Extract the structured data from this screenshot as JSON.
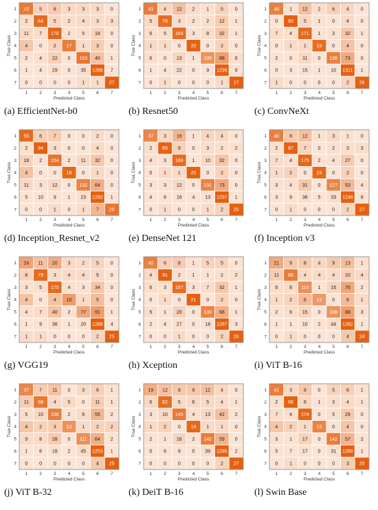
{
  "figure": {
    "colors": {
      "low": "#fbe4d5",
      "high": "#e5600f",
      "grid": "#ffffff",
      "frame": "#555555",
      "text_dark": "#222222",
      "text_light": "#ffffff"
    }
  },
  "chart_data": [
    {
      "type": "heatmap",
      "caption": "(a) EfficientNet-b0",
      "xlabel": "Predicted Class",
      "ylabel": "True Class",
      "x_categories": [
        "1",
        "2",
        "3",
        "4",
        "5",
        "6",
        "7"
      ],
      "y_categories": [
        "1",
        "2",
        "3",
        "4",
        "5",
        "6",
        "7"
      ],
      "matrix": [
        [
          43,
          5,
          8,
          3,
          3,
          3,
          0
        ],
        [
          2,
          64,
          5,
          2,
          4,
          3,
          3
        ],
        [
          11,
          7,
          176,
          2,
          5,
          18,
          0
        ],
        [
          4,
          0,
          2,
          17,
          1,
          3,
          0
        ],
        [
          2,
          4,
          22,
          0,
          153,
          40,
          1
        ],
        [
          1,
          4,
          29,
          0,
          35,
          1268,
          7
        ],
        [
          0,
          0,
          0,
          0,
          1,
          1,
          27
        ]
      ]
    },
    {
      "type": "heatmap",
      "caption": "(b) Resnet50",
      "xlabel": "Predicted Class",
      "ylabel": "True Class",
      "x_categories": [
        "1",
        "2",
        "3",
        "4",
        "5",
        "6",
        "7"
      ],
      "y_categories": [
        "1",
        "2",
        "3",
        "4",
        "5",
        "6",
        "7"
      ],
      "matrix": [
        [
          41,
          4,
          12,
          2,
          1,
          5,
          0
        ],
        [
          5,
          78,
          3,
          2,
          2,
          12,
          1
        ],
        [
          6,
          5,
          164,
          3,
          8,
          32,
          1
        ],
        [
          1,
          1,
          0,
          20,
          0,
          2,
          0
        ],
        [
          6,
          0,
          13,
          1,
          106,
          88,
          6
        ],
        [
          1,
          4,
          22,
          0,
          9,
          1296,
          9
        ],
        [
          0,
          1,
          0,
          0,
          0,
          1,
          27
        ]
      ]
    },
    {
      "type": "heatmap",
      "caption": "(c) ConvNeXt",
      "xlabel": "Predicted Class",
      "ylabel": "True Class",
      "x_categories": [
        "1",
        "2",
        "3",
        "4",
        "5",
        "6",
        "7"
      ],
      "y_categories": [
        "1",
        "2",
        "3",
        "4",
        "5",
        "6",
        "7"
      ],
      "matrix": [
        [
          40,
          1,
          12,
          2,
          6,
          4,
          0
        ],
        [
          0,
          92,
          5,
          1,
          0,
          4,
          0
        ],
        [
          7,
          4,
          171,
          1,
          3,
          32,
          1
        ],
        [
          0,
          1,
          1,
          18,
          0,
          4,
          0
        ],
        [
          2,
          0,
          11,
          0,
          136,
          73,
          0
        ],
        [
          0,
          3,
          15,
          1,
          10,
          1311,
          1
        ],
        [
          1,
          0,
          0,
          0,
          0,
          2,
          26
        ]
      ]
    },
    {
      "type": "heatmap",
      "caption": "(d) Inception_Resnet_v2",
      "xlabel": "Predicted Class",
      "ylabel": "True Class",
      "x_categories": [
        "1",
        "2",
        "3",
        "4",
        "5",
        "6",
        "7"
      ],
      "y_categories": [
        "1",
        "2",
        "3",
        "4",
        "5",
        "6",
        "7"
      ],
      "matrix": [
        [
          50,
          6,
          7,
          0,
          0,
          2,
          0
        ],
        [
          2,
          94,
          3,
          0,
          0,
          4,
          0
        ],
        [
          18,
          2,
          154,
          2,
          11,
          32,
          0
        ],
        [
          4,
          0,
          0,
          19,
          0,
          1,
          0
        ],
        [
          11,
          3,
          12,
          0,
          132,
          64,
          0
        ],
        [
          5,
          10,
          9,
          1,
          23,
          1292,
          1
        ],
        [
          0,
          0,
          1,
          0,
          1,
          7,
          20
        ]
      ]
    },
    {
      "type": "heatmap",
      "caption": "(e) DenseNet 121",
      "xlabel": "Predicted Class",
      "ylabel": "True Class",
      "x_categories": [
        "1",
        "2",
        "3",
        "4",
        "5",
        "6",
        "7"
      ],
      "y_categories": [
        "1",
        "2",
        "3",
        "4",
        "5",
        "6",
        "7"
      ],
      "matrix": [
        [
          37,
          3,
          16,
          1,
          4,
          4,
          0
        ],
        [
          2,
          85,
          9,
          0,
          3,
          2,
          2
        ],
        [
          4,
          3,
          169,
          1,
          10,
          32,
          0
        ],
        [
          0,
          1,
          1,
          20,
          0,
          2,
          0
        ],
        [
          3,
          3,
          12,
          0,
          131,
          73,
          0
        ],
        [
          4,
          6,
          16,
          4,
          13,
          1297,
          1
        ],
        [
          0,
          1,
          0,
          0,
          1,
          2,
          25
        ]
      ]
    },
    {
      "type": "heatmap",
      "caption": "(f) Inception v3",
      "xlabel": "Predicted Class",
      "ylabel": "True Class",
      "x_categories": [
        "1",
        "2",
        "3",
        "4",
        "5",
        "6",
        "7"
      ],
      "y_categories": [
        "1",
        "2",
        "3",
        "4",
        "5",
        "6",
        "7"
      ],
      "matrix": [
        [
          40,
          8,
          12,
          1,
          3,
          1,
          0
        ],
        [
          2,
          87,
          7,
          0,
          2,
          3,
          3
        ],
        [
          7,
          4,
          175,
          2,
          4,
          27,
          0
        ],
        [
          1,
          2,
          0,
          19,
          0,
          2,
          0
        ],
        [
          3,
          4,
          31,
          0,
          127,
          53,
          4
        ],
        [
          3,
          9,
          36,
          5,
          33,
          1246,
          9
        ],
        [
          0,
          1,
          0,
          0,
          0,
          2,
          27
        ]
      ]
    },
    {
      "type": "heatmap",
      "caption": "(g) VGG19",
      "xlabel": "Predicted Class",
      "ylabel": "True Class",
      "x_categories": [
        "1",
        "2",
        "3",
        "4",
        "5",
        "6",
        "7"
      ],
      "y_categories": [
        "1",
        "2",
        "3",
        "4",
        "5",
        "6",
        "7"
      ],
      "matrix": [
        [
          24,
          11,
          20,
          3,
          2,
          5,
          0
        ],
        [
          8,
          79,
          3,
          4,
          4,
          5,
          0
        ],
        [
          3,
          5,
          170,
          4,
          3,
          34,
          0
        ],
        [
          4,
          0,
          4,
          10,
          1,
          5,
          0
        ],
        [
          4,
          7,
          40,
          2,
          77,
          91,
          1
        ],
        [
          1,
          9,
          38,
          1,
          20,
          1268,
          4
        ],
        [
          1,
          1,
          0,
          0,
          0,
          2,
          25
        ]
      ]
    },
    {
      "type": "heatmap",
      "caption": "(h) Xception",
      "xlabel": "Predicted Class",
      "ylabel": "True Class",
      "x_categories": [
        "1",
        "2",
        "3",
        "4",
        "5",
        "6",
        "7"
      ],
      "y_categories": [
        "1",
        "2",
        "3",
        "4",
        "5",
        "6",
        "7"
      ],
      "matrix": [
        [
          40,
          6,
          8,
          1,
          5,
          5,
          0
        ],
        [
          4,
          91,
          2,
          1,
          1,
          2,
          2
        ],
        [
          6,
          3,
          167,
          3,
          7,
          32,
          1
        ],
        [
          0,
          1,
          0,
          21,
          0,
          2,
          0
        ],
        [
          5,
          1,
          20,
          0,
          130,
          66,
          1
        ],
        [
          2,
          4,
          27,
          0,
          18,
          1287,
          3
        ],
        [
          0,
          0,
          1,
          0,
          0,
          2,
          26
        ]
      ]
    },
    {
      "type": "heatmap",
      "caption": "(i) ViT B-16",
      "xlabel": "Predicted Class",
      "ylabel": "True Class",
      "x_categories": [
        "1",
        "2",
        "3",
        "4",
        "5",
        "6",
        "7"
      ],
      "y_categories": [
        "1",
        "2",
        "3",
        "4",
        "5",
        "6",
        "7"
      ],
      "matrix": [
        [
          21,
          9,
          8,
          4,
          9,
          13,
          1
        ],
        [
          11,
          66,
          4,
          4,
          4,
          10,
          4
        ],
        [
          6,
          8,
          110,
          1,
          16,
          76,
          2
        ],
        [
          1,
          2,
          6,
          12,
          0,
          6,
          1
        ],
        [
          2,
          6,
          15,
          0,
          108,
          88,
          3
        ],
        [
          1,
          1,
          10,
          2,
          44,
          1282,
          1
        ],
        [
          0,
          1,
          0,
          0,
          0,
          4,
          24
        ]
      ]
    },
    {
      "type": "heatmap",
      "caption": "(j) ViT B-32",
      "xlabel": "Predicted Class",
      "ylabel": "True Class",
      "x_categories": [
        "1",
        "2",
        "3",
        "4",
        "5",
        "6",
        "7"
      ],
      "y_categories": [
        "1",
        "2",
        "3",
        "4",
        "5",
        "6",
        "7"
      ],
      "matrix": [
        [
          37,
          7,
          11,
          0,
          3,
          6,
          1
        ],
        [
          11,
          68,
          4,
          5,
          0,
          11,
          1
        ],
        [
          5,
          10,
          136,
          2,
          9,
          55,
          2
        ],
        [
          4,
          2,
          3,
          13,
          1,
          2,
          2
        ],
        [
          9,
          8,
          28,
          0,
          111,
          64,
          2
        ],
        [
          1,
          6,
          18,
          2,
          45,
          1253,
          1
        ],
        [
          0,
          0,
          0,
          0,
          0,
          4,
          25
        ]
      ]
    },
    {
      "type": "heatmap",
      "caption": "(k) DeiT B-16",
      "xlabel": "Predicted Class",
      "ylabel": "True Class",
      "x_categories": [
        "1",
        "2",
        "3",
        "4",
        "5",
        "6",
        "7"
      ],
      "y_categories": [
        "1",
        "2",
        "3",
        "4",
        "5",
        "6",
        "7"
      ],
      "matrix": [
        [
          19,
          12,
          9,
          9,
          12,
          4,
          0
        ],
        [
          6,
          82,
          5,
          6,
          5,
          4,
          1
        ],
        [
          3,
          10,
          145,
          4,
          13,
          42,
          2
        ],
        [
          1,
          2,
          0,
          19,
          1,
          1,
          0
        ],
        [
          2,
          1,
          16,
          2,
          142,
          59,
          0
        ],
        [
          0,
          6,
          9,
          0,
          39,
          1285,
          2
        ],
        [
          0,
          0,
          0,
          0,
          0,
          2,
          27
        ]
      ]
    },
    {
      "type": "heatmap",
      "caption": "(l) Swin Base",
      "xlabel": "Predicted Class",
      "ylabel": "True Class",
      "x_categories": [
        "1",
        "2",
        "3",
        "4",
        "5",
        "6",
        "7"
      ],
      "y_categories": [
        "1",
        "2",
        "3",
        "4",
        "5",
        "6",
        "7"
      ],
      "matrix": [
        [
          41,
          3,
          9,
          0,
          5,
          6,
          1
        ],
        [
          2,
          86,
          6,
          1,
          3,
          4,
          1
        ],
        [
          7,
          4,
          174,
          0,
          5,
          29,
          0
        ],
        [
          4,
          2,
          1,
          15,
          0,
          4,
          0
        ],
        [
          3,
          1,
          17,
          0,
          142,
          57,
          2
        ],
        [
          5,
          7,
          17,
          0,
          31,
          1280,
          1
        ],
        [
          0,
          1,
          0,
          0,
          0,
          3,
          25
        ]
      ]
    }
  ]
}
